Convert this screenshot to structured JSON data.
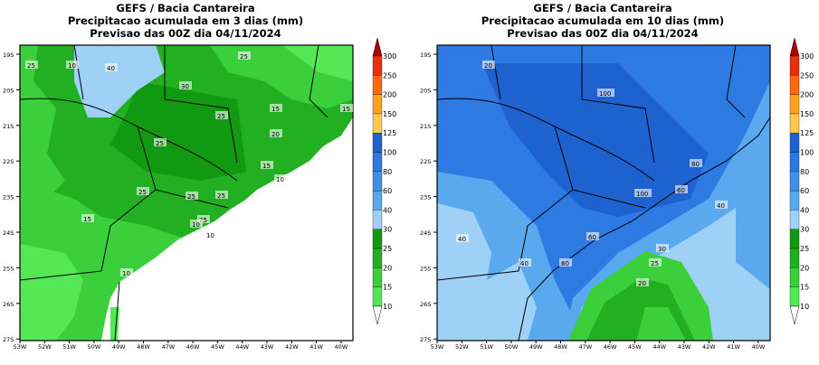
{
  "colors": {
    "ocean": "#ffffff",
    "border": "#000000"
  },
  "legend": {
    "ticks": [
      "10",
      "15",
      "20",
      "25",
      "30",
      "40",
      "60",
      "80",
      "100",
      "125",
      "150",
      "200",
      "250",
      "300"
    ],
    "colors": [
      "#55e855",
      "#3ccf3c",
      "#22b022",
      "#129912",
      "#9fd0f5",
      "#5aa8ee",
      "#3f8fe8",
      "#2c7ae2",
      "#1e62d0",
      "#ffc850",
      "#ffa020",
      "#ff6a10",
      "#e83010",
      "#b00000"
    ]
  },
  "axes": {
    "lat_labels": [
      "19S",
      "20S",
      "21S",
      "22S",
      "23S",
      "24S",
      "25S",
      "26S",
      "27S"
    ],
    "lon_labels": [
      "53W",
      "52W",
      "51W",
      "50W",
      "49W",
      "48W",
      "47W",
      "46W",
      "45W",
      "44W",
      "43W",
      "42W",
      "41W",
      "40W"
    ]
  },
  "maps": [
    {
      "title": [
        "GEFS / Bacia Cantareira",
        "Precipitacao acumulada em 3 dias (mm)",
        "Previsao das 00Z dia 04/11/2024"
      ],
      "contour_labels": [
        "25",
        "10",
        "40",
        "25",
        "30",
        "25",
        "15",
        "15",
        "25",
        "20",
        "15",
        "10",
        "25",
        "25",
        "25",
        "15",
        "25",
        "10",
        "10",
        "10"
      ]
    },
    {
      "title": [
        "GEFS / Bacia Cantareira",
        "Precipitacao acumulada em 10 dias (mm)",
        "Previsao das 00Z dia 04/11/2024"
      ],
      "contour_labels": [
        "20",
        "100",
        "80",
        "100",
        "60",
        "40",
        "40",
        "60",
        "40",
        "60",
        "30",
        "25",
        "20"
      ]
    }
  ]
}
